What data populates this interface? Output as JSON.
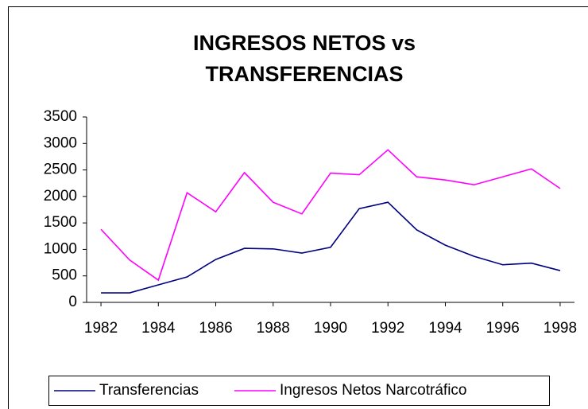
{
  "chart_data": {
    "type": "line",
    "title": [
      "INGRESOS NETOS vs",
      "TRANSFERENCIAS"
    ],
    "x": [
      1982,
      1983,
      1984,
      1985,
      1986,
      1987,
      1988,
      1989,
      1990,
      1991,
      1992,
      1993,
      1994,
      1995,
      1996,
      1997,
      1998
    ],
    "series": [
      {
        "name": "Transferencias",
        "color": "#000080",
        "values": [
          180,
          180,
          330,
          480,
          810,
          1020,
          1010,
          930,
          1040,
          1770,
          1890,
          1370,
          1080,
          870,
          710,
          740,
          600
        ]
      },
      {
        "name": "Ingresos Netos Narcotráfico",
        "color": "#ff00ff",
        "values": [
          1380,
          800,
          420,
          2070,
          1710,
          2450,
          1890,
          1670,
          2440,
          2410,
          2880,
          2370,
          2310,
          2220,
          2370,
          2520,
          2150
        ]
      }
    ],
    "xlim": [
      1981.5,
      1998.5
    ],
    "xticks": [
      1982,
      1984,
      1986,
      1988,
      1990,
      1992,
      1994,
      1996,
      1998
    ],
    "ylim": [
      0,
      3500
    ],
    "yticks": [
      0,
      500,
      1000,
      1500,
      2000,
      2500,
      3000,
      3500
    ],
    "grid": false,
    "legend": "bottom"
  }
}
